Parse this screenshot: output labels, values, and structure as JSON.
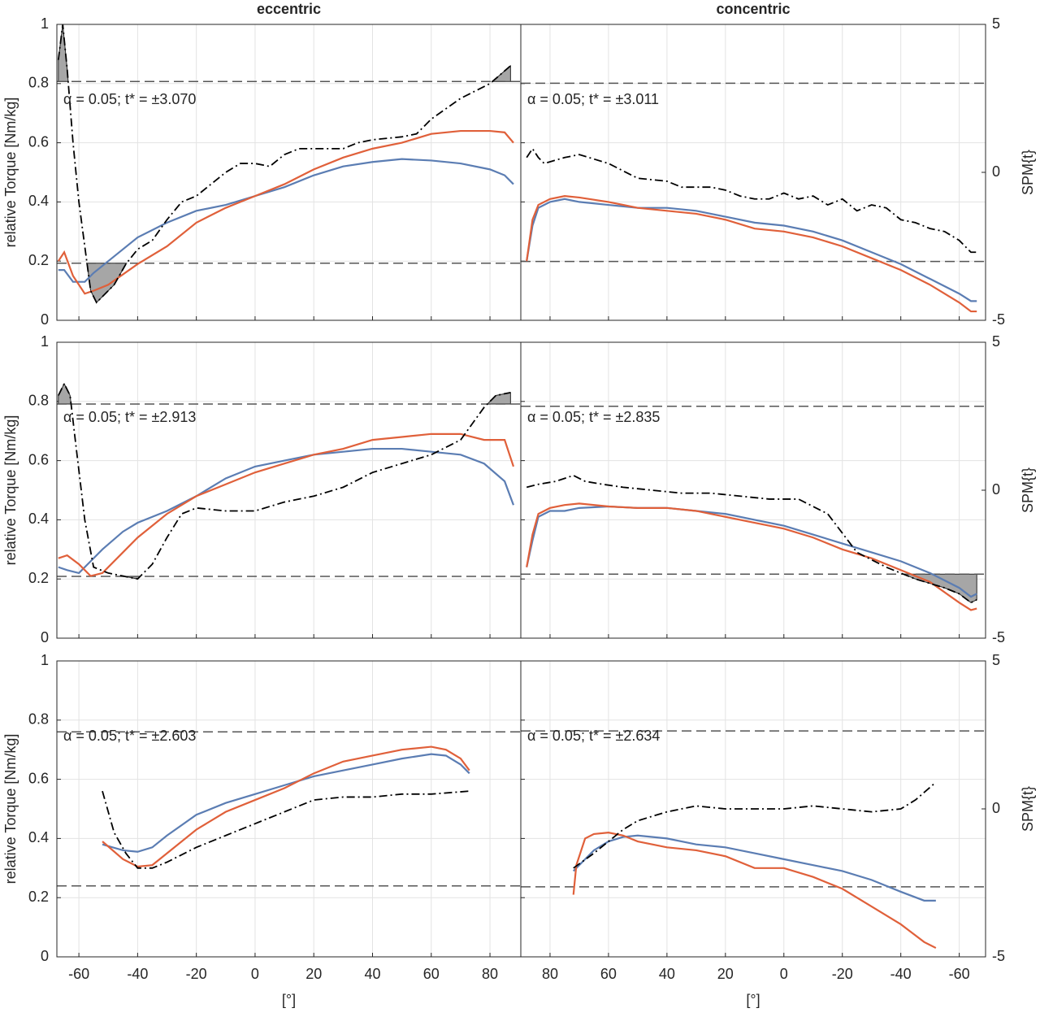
{
  "chart_data": [
    {
      "type": "line",
      "title": "eccentric",
      "ylabel": "relative Torque [Nm/kg]",
      "annotation": "α = 0.05; t* = ±3.070",
      "threshold": 3.07,
      "xlim": [
        -67.5,
        90.5
      ],
      "xticks": [
        -60,
        -40,
        -20,
        0,
        20,
        40,
        60,
        80
      ],
      "xtick_labels": false,
      "ylim": [
        0,
        1
      ],
      "yticks": [
        0,
        0.2,
        0.4,
        0.6,
        0.8,
        1
      ],
      "ytick_labels": true,
      "y2lim": [
        -5,
        5
      ],
      "grid": true,
      "x": [
        -67,
        -65,
        -62,
        -58,
        -55,
        -50,
        -40,
        -30,
        -20,
        -10,
        0,
        10,
        20,
        30,
        40,
        50,
        60,
        70,
        80,
        85,
        88
      ],
      "series": [
        {
          "color": "#5b7db3",
          "values": [
            0.17,
            0.17,
            0.13,
            0.13,
            0.16,
            0.2,
            0.28,
            0.33,
            0.37,
            0.39,
            0.42,
            0.45,
            0.49,
            0.52,
            0.535,
            0.545,
            0.54,
            0.53,
            0.51,
            0.49,
            0.46
          ]
        },
        {
          "color": "#e0603a",
          "values": [
            0.2,
            0.23,
            0.15,
            0.09,
            0.1,
            0.12,
            0.19,
            0.25,
            0.33,
            0.38,
            0.42,
            0.46,
            0.51,
            0.55,
            0.58,
            0.6,
            0.63,
            0.64,
            0.64,
            0.635,
            0.6
          ]
        }
      ],
      "spm_x": [
        -67,
        -65.5,
        -64,
        -62,
        -60,
        -58,
        -56,
        -54,
        -52,
        -48,
        -44,
        -40,
        -35,
        -30,
        -25,
        -20,
        -15,
        -10,
        -5,
        0,
        5,
        10,
        15,
        20,
        30,
        35,
        40,
        50,
        55,
        60,
        70,
        80,
        87
      ],
      "spm": [
        3.8,
        5.0,
        3.5,
        1.0,
        -1.0,
        -2.5,
        -4.0,
        -4.4,
        -4.2,
        -3.8,
        -3.1,
        -2.6,
        -2.3,
        -1.6,
        -1.0,
        -0.8,
        -0.4,
        0.0,
        0.3,
        0.3,
        0.2,
        0.6,
        0.8,
        0.8,
        0.8,
        1.0,
        1.1,
        1.2,
        1.3,
        1.8,
        2.5,
        3.0,
        3.6
      ]
    },
    {
      "type": "line",
      "title": "concentric",
      "y2label": "SPM{t}",
      "annotation": "α = 0.05; t* = ±3.011",
      "threshold": 3.011,
      "xlim": [
        90,
        -69
      ],
      "xticks": [
        80,
        60,
        40,
        20,
        0,
        -20,
        -40,
        -60
      ],
      "xtick_labels": false,
      "ylim": [
        0,
        1
      ],
      "yticks": [
        0,
        0.2,
        0.4,
        0.6,
        0.8,
        1
      ],
      "ytick_labels": false,
      "y2lim": [
        -5,
        5
      ],
      "y2ticks": [
        -5,
        0,
        5
      ],
      "grid": true,
      "x": [
        88,
        86,
        84,
        80,
        75,
        70,
        60,
        50,
        40,
        30,
        20,
        10,
        0,
        -10,
        -20,
        -30,
        -40,
        -50,
        -60,
        -64,
        -66
      ],
      "series": [
        {
          "color": "#5b7db3",
          "values": [
            0.2,
            0.32,
            0.38,
            0.4,
            0.41,
            0.4,
            0.39,
            0.38,
            0.38,
            0.37,
            0.35,
            0.33,
            0.32,
            0.3,
            0.27,
            0.23,
            0.19,
            0.14,
            0.09,
            0.065,
            0.065
          ]
        },
        {
          "color": "#e0603a",
          "values": [
            0.2,
            0.34,
            0.39,
            0.41,
            0.42,
            0.415,
            0.4,
            0.38,
            0.37,
            0.36,
            0.34,
            0.31,
            0.3,
            0.28,
            0.25,
            0.21,
            0.17,
            0.12,
            0.06,
            0.03,
            0.03
          ]
        }
      ],
      "spm_x": [
        88,
        86,
        84,
        82,
        75,
        70,
        60,
        50,
        40,
        35,
        25,
        20,
        15,
        10,
        5,
        0,
        -5,
        -10,
        -15,
        -20,
        -25,
        -30,
        -35,
        -40,
        -45,
        -50,
        -55,
        -60,
        -64,
        -66
      ],
      "spm": [
        0.5,
        0.8,
        0.5,
        0.3,
        0.5,
        0.6,
        0.3,
        -0.2,
        -0.3,
        -0.5,
        -0.5,
        -0.6,
        -0.8,
        -0.9,
        -0.9,
        -0.7,
        -0.9,
        -0.8,
        -1.1,
        -0.9,
        -1.3,
        -1.1,
        -1.2,
        -1.6,
        -1.7,
        -1.9,
        -2.0,
        -2.3,
        -2.7,
        -2.7
      ]
    },
    {
      "type": "line",
      "ylabel": "relative Torque [Nm/kg]",
      "annotation": "α = 0.05; t* = ±2.913",
      "threshold": 2.913,
      "xlim": [
        -67.5,
        90.5
      ],
      "xticks": [
        -60,
        -40,
        -20,
        0,
        20,
        40,
        60,
        80
      ],
      "xtick_labels": false,
      "ylim": [
        0,
        1
      ],
      "yticks": [
        0,
        0.2,
        0.4,
        0.6,
        0.8,
        1
      ],
      "ytick_labels": true,
      "y2lim": [
        -5,
        5
      ],
      "grid": true,
      "x": [
        -67,
        -64,
        -60,
        -56,
        -52,
        -45,
        -40,
        -30,
        -20,
        -10,
        0,
        10,
        20,
        30,
        40,
        50,
        60,
        70,
        78,
        85,
        88
      ],
      "series": [
        {
          "color": "#5b7db3",
          "values": [
            0.24,
            0.23,
            0.22,
            0.26,
            0.3,
            0.36,
            0.39,
            0.43,
            0.48,
            0.54,
            0.58,
            0.6,
            0.62,
            0.63,
            0.64,
            0.64,
            0.63,
            0.62,
            0.59,
            0.53,
            0.45
          ]
        },
        {
          "color": "#e0603a",
          "values": [
            0.27,
            0.28,
            0.25,
            0.21,
            0.22,
            0.29,
            0.34,
            0.42,
            0.48,
            0.52,
            0.56,
            0.59,
            0.62,
            0.64,
            0.67,
            0.68,
            0.69,
            0.69,
            0.67,
            0.67,
            0.58
          ]
        }
      ],
      "spm_x": [
        -67,
        -65,
        -63,
        -61,
        -58,
        -55,
        -50,
        -45,
        -40,
        -35,
        -30,
        -25,
        -20,
        -10,
        0,
        10,
        20,
        30,
        40,
        50,
        60,
        70,
        78,
        82,
        87
      ],
      "spm": [
        3.2,
        3.6,
        3.2,
        1.5,
        -1.0,
        -2.6,
        -2.8,
        -2.9,
        -3.0,
        -2.5,
        -1.6,
        -0.8,
        -0.6,
        -0.7,
        -0.7,
        -0.4,
        -0.2,
        0.1,
        0.6,
        0.9,
        1.2,
        1.7,
        2.8,
        3.2,
        3.3
      ]
    },
    {
      "type": "line",
      "y2label": "SPM{t}",
      "annotation": "α = 0.05; t* = ±2.835",
      "threshold": 2.835,
      "xlim": [
        90,
        -69
      ],
      "xticks": [
        80,
        60,
        40,
        20,
        0,
        -20,
        -40,
        -60
      ],
      "xtick_labels": false,
      "ylim": [
        0,
        1
      ],
      "yticks": [
        0,
        0.2,
        0.4,
        0.6,
        0.8,
        1
      ],
      "ytick_labels": false,
      "y2lim": [
        -5,
        5
      ],
      "y2ticks": [
        -5,
        0,
        5
      ],
      "grid": true,
      "x": [
        88,
        86,
        84,
        80,
        75,
        70,
        60,
        50,
        40,
        30,
        20,
        10,
        0,
        -10,
        -20,
        -30,
        -40,
        -50,
        -60,
        -64,
        -66
      ],
      "series": [
        {
          "color": "#5b7db3",
          "values": [
            0.24,
            0.33,
            0.41,
            0.43,
            0.43,
            0.44,
            0.445,
            0.44,
            0.44,
            0.43,
            0.42,
            0.4,
            0.38,
            0.35,
            0.32,
            0.29,
            0.26,
            0.22,
            0.17,
            0.14,
            0.15
          ]
        },
        {
          "color": "#e0603a",
          "values": [
            0.24,
            0.35,
            0.42,
            0.44,
            0.45,
            0.455,
            0.445,
            0.44,
            0.44,
            0.43,
            0.41,
            0.39,
            0.37,
            0.34,
            0.3,
            0.27,
            0.23,
            0.19,
            0.12,
            0.095,
            0.1
          ]
        }
      ],
      "spm_x": [
        88,
        84,
        78,
        72,
        68,
        62,
        55,
        45,
        35,
        25,
        15,
        5,
        -5,
        -15,
        -25,
        -35,
        -45,
        -55,
        -60,
        -64,
        -66
      ],
      "spm": [
        0.1,
        0.2,
        0.3,
        0.5,
        0.3,
        0.2,
        0.1,
        0.0,
        -0.1,
        -0.1,
        -0.2,
        -0.3,
        -0.3,
        -0.8,
        -2.1,
        -2.6,
        -3.0,
        -3.3,
        -3.5,
        -3.8,
        -3.7
      ]
    },
    {
      "type": "line",
      "ylabel": "relative Torque [Nm/kg]",
      "xlabel": "[°]",
      "annotation": "α = 0.05; t* = ±2.603",
      "threshold": 2.603,
      "xlim": [
        -67.5,
        90.5
      ],
      "xticks": [
        -60,
        -40,
        -20,
        0,
        20,
        40,
        60,
        80
      ],
      "xtick_labels": true,
      "ylim": [
        0,
        1
      ],
      "yticks": [
        0,
        0.2,
        0.4,
        0.6,
        0.8,
        1
      ],
      "ytick_labels": true,
      "y2lim": [
        -5,
        5
      ],
      "grid": true,
      "x": [
        -52,
        -45,
        -40,
        -35,
        -30,
        -20,
        -10,
        0,
        10,
        20,
        30,
        40,
        50,
        60,
        65,
        70,
        73
      ],
      "series": [
        {
          "color": "#5b7db3",
          "values": [
            0.38,
            0.36,
            0.355,
            0.37,
            0.41,
            0.48,
            0.52,
            0.55,
            0.58,
            0.61,
            0.63,
            0.65,
            0.67,
            0.685,
            0.68,
            0.65,
            0.62
          ]
        },
        {
          "color": "#e0603a",
          "values": [
            0.39,
            0.33,
            0.305,
            0.31,
            0.35,
            0.43,
            0.49,
            0.53,
            0.57,
            0.62,
            0.66,
            0.68,
            0.7,
            0.71,
            0.7,
            0.67,
            0.63
          ]
        }
      ],
      "spm_x": [
        -52,
        -48,
        -44,
        -40,
        -35,
        -30,
        -20,
        -10,
        0,
        10,
        20,
        30,
        40,
        50,
        60,
        73
      ],
      "spm": [
        0.6,
        -0.8,
        -1.5,
        -2.0,
        -2.0,
        -1.8,
        -1.3,
        -0.9,
        -0.5,
        -0.1,
        0.3,
        0.4,
        0.4,
        0.5,
        0.5,
        0.6
      ]
    },
    {
      "type": "line",
      "y2label": "SPM{t}",
      "xlabel": "[°]",
      "annotation": "α = 0.05; t* = ±2.634",
      "threshold": 2.634,
      "xlim": [
        90,
        -69
      ],
      "xticks": [
        80,
        60,
        40,
        20,
        0,
        -20,
        -40,
        -60
      ],
      "xtick_labels": true,
      "ylim": [
        0,
        1
      ],
      "yticks": [
        0,
        0.2,
        0.4,
        0.6,
        0.8,
        1
      ],
      "ytick_labels": false,
      "y2lim": [
        -5,
        5
      ],
      "y2ticks": [
        -5,
        0,
        5
      ],
      "grid": true,
      "x": [
        72,
        71,
        68,
        65,
        60,
        55,
        50,
        40,
        30,
        20,
        10,
        0,
        -10,
        -20,
        -30,
        -40,
        -48,
        -52
      ],
      "series": [
        {
          "color": "#5b7db3",
          "values": [
            0.29,
            0.3,
            0.33,
            0.36,
            0.39,
            0.405,
            0.41,
            0.4,
            0.38,
            0.37,
            0.35,
            0.33,
            0.31,
            0.29,
            0.26,
            0.22,
            0.19,
            0.19
          ]
        },
        {
          "color": "#e0603a",
          "values": [
            0.21,
            0.31,
            0.4,
            0.415,
            0.42,
            0.41,
            0.39,
            0.37,
            0.36,
            0.34,
            0.3,
            0.3,
            0.27,
            0.23,
            0.17,
            0.11,
            0.05,
            0.03
          ]
        }
      ],
      "spm_x": [
        72,
        65,
        60,
        55,
        50,
        40,
        30,
        20,
        10,
        0,
        -10,
        -20,
        -30,
        -40,
        -45,
        -52
      ],
      "spm": [
        -2.0,
        -1.5,
        -1.1,
        -0.7,
        -0.4,
        -0.1,
        0.1,
        0.0,
        0.0,
        0.0,
        0.1,
        0.0,
        -0.1,
        0.0,
        0.3,
        0.9
      ]
    }
  ]
}
